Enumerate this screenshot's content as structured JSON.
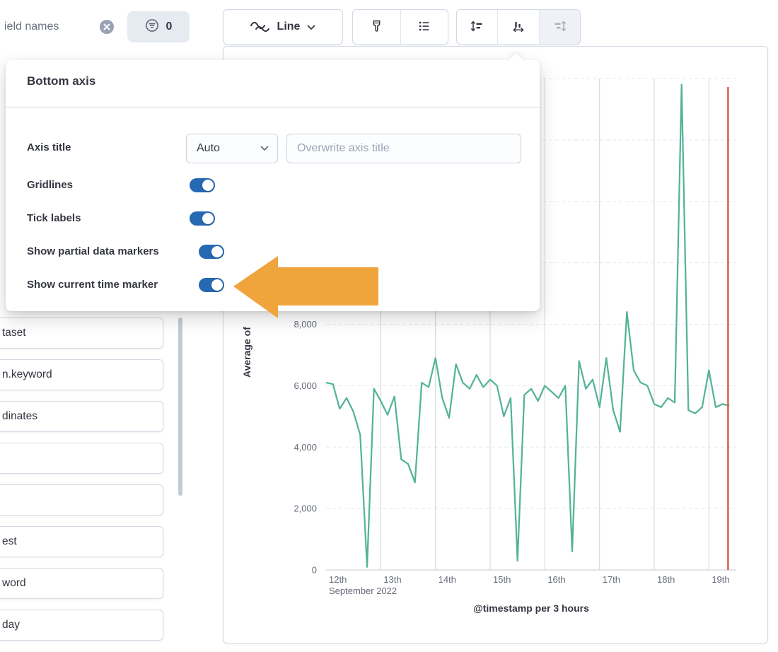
{
  "sidebar": {
    "search": {
      "value": "ield names"
    },
    "filter_count": "0",
    "fields": [
      {
        "label": "taset"
      },
      {
        "label": "n.keyword"
      },
      {
        "label": "dinates"
      },
      {
        "label": ""
      },
      {
        "label": ""
      },
      {
        "label": "est"
      },
      {
        "label": "word"
      },
      {
        "label": "day"
      }
    ]
  },
  "toolbar": {
    "chart_type": {
      "label": "Line",
      "icon": "line-chart-icon"
    },
    "style_button_icon": "brush-icon",
    "values_button_icon": "list-icon",
    "axis_buttons": [
      "left-axis-icon",
      "bottom-axis-icon",
      "right-axis-icon"
    ]
  },
  "popover": {
    "title": "Bottom axis",
    "axis_title_label": "Axis title",
    "axis_title_mode": "Auto",
    "axis_title_placeholder": "Overwrite axis title",
    "switch_color": "#2668b2",
    "toggles": [
      {
        "label": "Gridlines",
        "on": true
      },
      {
        "label": "Tick labels",
        "on": true
      },
      {
        "label": "Show partial data markers",
        "on": true
      },
      {
        "label": "Show current time marker",
        "on": true
      }
    ]
  },
  "annotation": {
    "arrow_color": "#f0a43c"
  },
  "chart_data": {
    "type": "line",
    "series_color": "#54B399",
    "x_axis_title": "@timestamp per 3 hours",
    "y_axis_title": "Average of",
    "x_secondary_label": "September 2022",
    "x_tick_labels": [
      "12th",
      "13th",
      "14th",
      "15th",
      "16th",
      "17th",
      "18th",
      "19th"
    ],
    "x_tick_positions": [
      0,
      8,
      16,
      24,
      32,
      40,
      48,
      56
    ],
    "x_unit_hours": 3,
    "x_range": [
      0,
      60
    ],
    "ylim": [
      0,
      16000
    ],
    "y_grid_step": 2000,
    "y_ticks": [
      0,
      2000,
      4000,
      6000,
      8000
    ],
    "y_tick_labels": [
      "0",
      "2,000",
      "4,000",
      "6,000",
      "8,000"
    ],
    "current_time_marker": {
      "position": 58.8,
      "color": "#d6604d"
    },
    "values": [
      6100,
      6050,
      5250,
      5600,
      5150,
      4400,
      100,
      5900,
      5500,
      5050,
      5650,
      3600,
      3450,
      2850,
      6100,
      5950,
      6900,
      5600,
      4950,
      6700,
      6100,
      5900,
      6350,
      5950,
      6200,
      6000,
      5000,
      5600,
      300,
      5700,
      5900,
      5500,
      6000,
      5800,
      5600,
      6000,
      600,
      6800,
      5900,
      6200,
      5300,
      6900,
      5200,
      4500,
      8400,
      6500,
      6100,
      6000,
      5400,
      5300,
      5600,
      5450,
      15800,
      5200,
      5100,
      5300,
      6500,
      5300,
      5400,
      5350
    ]
  }
}
